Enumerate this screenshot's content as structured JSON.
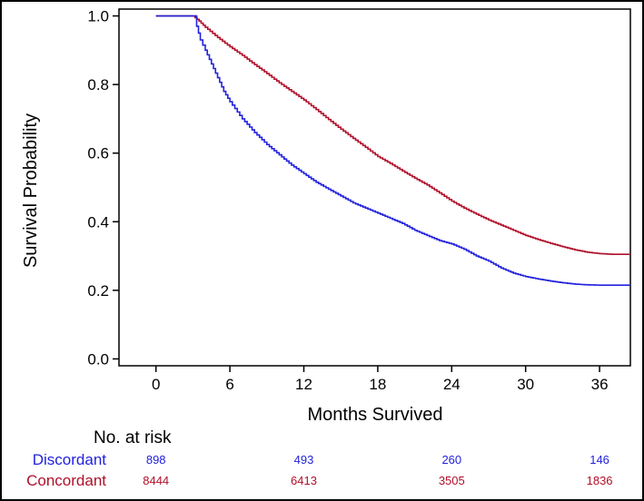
{
  "chart_data": {
    "type": "line",
    "title": "",
    "xlabel": "Months Survived",
    "ylabel": "Survival Probability",
    "xlim": [
      -3,
      38.5
    ],
    "ylim": [
      -0.02,
      1.02
    ],
    "x_ticks": [
      0,
      6,
      12,
      18,
      24,
      30,
      36
    ],
    "x_tick_labels": [
      "0",
      "6",
      "12",
      "18",
      "24",
      "30",
      "36"
    ],
    "y_ticks": [
      0.0,
      0.2,
      0.4,
      0.6,
      0.8,
      1.0
    ],
    "y_tick_labels": [
      "0.0",
      "0.2",
      "0.4",
      "0.6",
      "0.8",
      "1.0"
    ],
    "grid": false,
    "series": [
      {
        "name": "Concordant",
        "color": "#b0102a",
        "x": [
          0,
          3,
          3.5,
          4,
          5,
          6,
          7,
          8,
          9,
          10,
          11,
          12,
          13,
          14,
          15,
          16,
          17,
          18,
          19,
          20,
          21,
          22,
          23,
          24,
          25,
          26,
          27,
          28,
          29,
          30,
          31,
          32,
          33,
          34,
          35,
          36,
          37,
          38.5
        ],
        "y": [
          1.0,
          1.0,
          0.985,
          0.967,
          0.937,
          0.91,
          0.885,
          0.858,
          0.832,
          0.805,
          0.78,
          0.755,
          0.727,
          0.698,
          0.67,
          0.643,
          0.617,
          0.59,
          0.57,
          0.548,
          0.527,
          0.507,
          0.484,
          0.46,
          0.44,
          0.422,
          0.405,
          0.39,
          0.375,
          0.36,
          0.348,
          0.337,
          0.327,
          0.318,
          0.311,
          0.307,
          0.305,
          0.305
        ]
      },
      {
        "name": "Discordant",
        "color": "#2222dd",
        "x": [
          0,
          3,
          3.3,
          3.6,
          4,
          4.5,
          5,
          5.5,
          6,
          7,
          8,
          9,
          10,
          11,
          12,
          13,
          14,
          15,
          16,
          17,
          18,
          19,
          20,
          21,
          22,
          23,
          24,
          25,
          26,
          27,
          28,
          29,
          30,
          31,
          32,
          33,
          34,
          35,
          36,
          38.5
        ],
        "y": [
          1.0,
          1.0,
          0.97,
          0.93,
          0.9,
          0.86,
          0.82,
          0.78,
          0.75,
          0.7,
          0.66,
          0.625,
          0.595,
          0.565,
          0.54,
          0.515,
          0.495,
          0.475,
          0.455,
          0.44,
          0.425,
          0.41,
          0.395,
          0.375,
          0.36,
          0.345,
          0.335,
          0.32,
          0.3,
          0.285,
          0.265,
          0.25,
          0.24,
          0.233,
          0.227,
          0.222,
          0.218,
          0.216,
          0.215,
          0.215
        ]
      }
    ],
    "risk_table": {
      "title": "No. at risk",
      "times": [
        0,
        12,
        24,
        36
      ],
      "groups": [
        {
          "name": "Discordant",
          "color": "#2222dd",
          "values": [
            "898",
            "493",
            "260",
            "146"
          ]
        },
        {
          "name": "Concordant",
          "color": "#b0102a",
          "values": [
            "8444",
            "6413",
            "3505",
            "1836"
          ]
        }
      ]
    }
  }
}
